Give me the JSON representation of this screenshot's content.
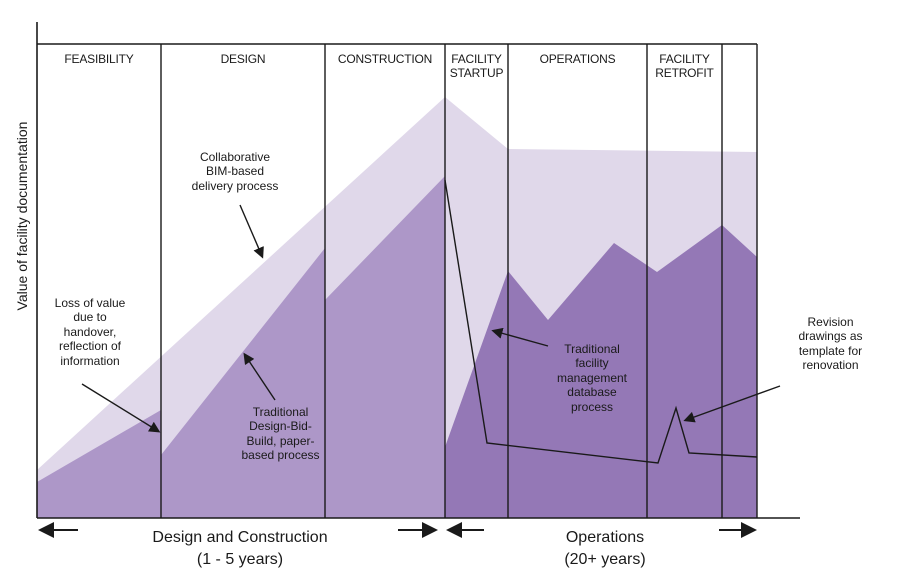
{
  "y_axis_label": "Value of facility documentation",
  "phases": [
    {
      "label": "FEASIBILITY"
    },
    {
      "label": "DESIGN"
    },
    {
      "label": "CONSTRUCTION"
    },
    {
      "label": "FACILITY\nSTARTUP"
    },
    {
      "label": "OPERATIONS"
    },
    {
      "label": "FACILITY\nRETROFIT"
    }
  ],
  "annotations": {
    "bim": "Collaborative\nBIM-based\ndelivery process",
    "loss": "Loss of value\ndue to\nhandover,\nreflection of\ninformation",
    "traditional_dbb": "Traditional\nDesign-Bid-\nBuild, paper-\nbased process",
    "fm_database": "Traditional\nfacility\nmanagement\ndatabase\nprocess",
    "revision": "Revision\ndrawings as\ntemplate for\nrenovation"
  },
  "bottom": {
    "design_construction": "Design and  Construction\n(1 - 5 years)",
    "operations": "Operations\n(20+ years)"
  },
  "colors": {
    "bim_area": "#e0d8ea",
    "traditional_area": "#ad97c8",
    "operations_area": "#9478b6",
    "lines": "#1a1a1a"
  }
}
